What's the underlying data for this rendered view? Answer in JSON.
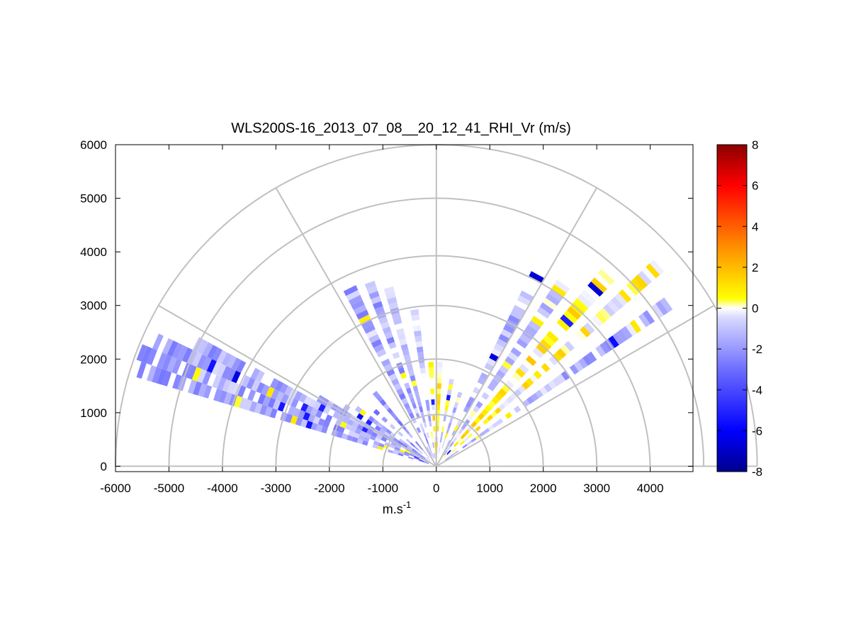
{
  "chart_data": {
    "type": "heatmap",
    "subtype": "polar RHI scan (range-height indicator)",
    "title": "WLS200S-16_2013_07_08__20_12_41_RHI_Vr (m/s)",
    "xlabel": "m.s",
    "xlabel_superscript": "-1",
    "ylabel": "",
    "xlim": [
      -6000,
      4800
    ],
    "ylim": [
      -100,
      6000
    ],
    "x_ticks": [
      -6000,
      -5000,
      -4000,
      -3000,
      -2000,
      -1000,
      0,
      1000,
      2000,
      3000,
      4000
    ],
    "y_ticks": [
      0,
      1000,
      2000,
      3000,
      4000,
      5000,
      6000
    ],
    "grid": "polar",
    "polar_rings": [
      1000,
      2000,
      3000,
      4000,
      5000,
      6000
    ],
    "polar_spokes_deg": [
      0,
      30,
      60,
      90,
      120,
      150,
      180
    ],
    "colorbar": {
      "position": "right",
      "ticks": [
        8,
        6,
        4,
        2,
        0,
        -2,
        -4,
        -6,
        -8
      ],
      "range": [
        -8,
        8
      ],
      "colormap": [
        "#00008c",
        "#0000ff",
        "#6c6cff",
        "#d8d8ff",
        "#ffffff",
        "#ffff00",
        "#ff8c00",
        "#ff0000",
        "#8c0000"
      ]
    },
    "beams": [
      {
        "az": 162,
        "r_min": 150,
        "r_max": 5850,
        "mean_vr": -1.6,
        "width_deg": 3
      },
      {
        "az": 159,
        "r_min": 150,
        "r_max": 5900,
        "mean_vr": -1.6,
        "width_deg": 3
      },
      {
        "az": 156,
        "r_min": 150,
        "r_max": 5800,
        "mean_vr": -1.5,
        "width_deg": 3
      },
      {
        "az": 153,
        "r_min": 150,
        "r_max": 5100,
        "mean_vr": -1.5,
        "width_deg": 3
      },
      {
        "az": 150,
        "r_min": 150,
        "r_max": 2500,
        "mean_vr": -1.4,
        "width_deg": 3
      },
      {
        "az": 147,
        "r_min": 150,
        "r_max": 2000,
        "mean_vr": -1.8,
        "width_deg": 3
      },
      {
        "az": 144,
        "r_min": 150,
        "r_max": 1800,
        "mean_vr": -1.8,
        "width_deg": 3
      },
      {
        "az": 138,
        "r_min": 150,
        "r_max": 1500,
        "mean_vr": -2.0,
        "width_deg": 3
      },
      {
        "az": 130,
        "r_min": 200,
        "r_max": 1800,
        "mean_vr": -1.7,
        "width_deg": 3
      },
      {
        "az": 116,
        "r_min": 200,
        "r_max": 3700,
        "mean_vr": -1.5,
        "width_deg": 4
      },
      {
        "az": 110,
        "r_min": 150,
        "r_max": 3600,
        "mean_vr": -1.5,
        "width_deg": 3
      },
      {
        "az": 105,
        "r_min": 150,
        "r_max": 3400,
        "mean_vr": -1.4,
        "width_deg": 3
      },
      {
        "az": 98,
        "r_min": 150,
        "r_max": 2900,
        "mean_vr": -1.0,
        "width_deg": 3
      },
      {
        "az": 93,
        "r_min": 150,
        "r_max": 1900,
        "mean_vr": 0.5,
        "width_deg": 3
      },
      {
        "az": 88,
        "r_min": 150,
        "r_max": 1900,
        "mean_vr": 0.6,
        "width_deg": 3
      },
      {
        "az": 80,
        "r_min": 150,
        "r_max": 1600,
        "mean_vr": -0.5,
        "width_deg": 3
      },
      {
        "az": 72,
        "r_min": 150,
        "r_max": 1400,
        "mean_vr": -1.0,
        "width_deg": 3
      },
      {
        "az": 62,
        "r_min": 150,
        "r_max": 4200,
        "mean_vr": -1.2,
        "width_deg": 4
      },
      {
        "az": 55,
        "r_min": 150,
        "r_max": 4100,
        "mean_vr": -1.0,
        "width_deg": 4
      },
      {
        "az": 48,
        "r_min": 200,
        "r_max": 4800,
        "mean_vr": 0.6,
        "width_deg": 4
      },
      {
        "az": 42,
        "r_min": 300,
        "r_max": 5600,
        "mean_vr": 0.4,
        "width_deg": 3
      },
      {
        "az": 35,
        "r_min": 200,
        "r_max": 5300,
        "mean_vr": -1.3,
        "width_deg": 3
      }
    ]
  }
}
